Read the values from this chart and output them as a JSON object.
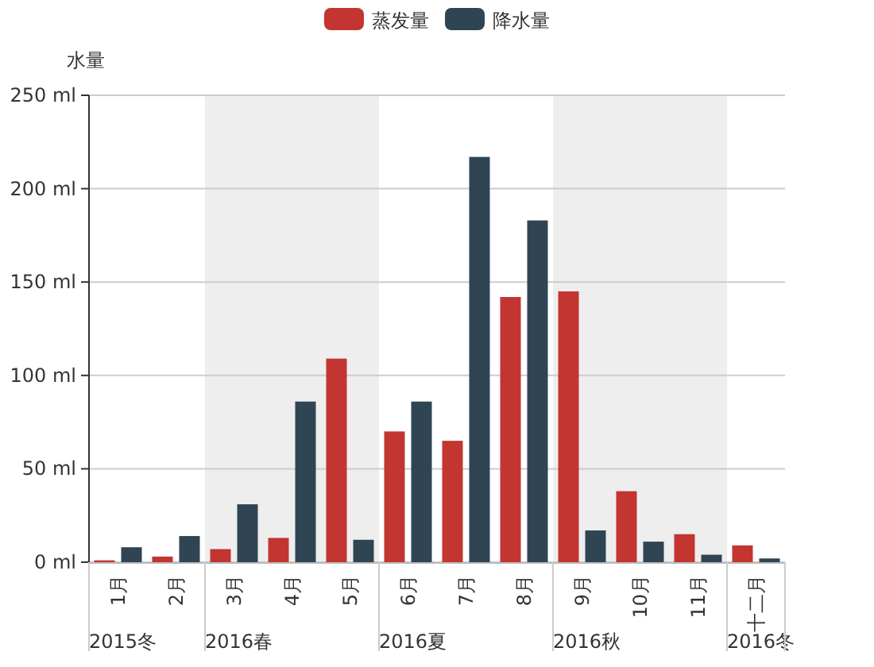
{
  "chart_data": {
    "type": "bar",
    "ylabel": "水量",
    "categories": [
      "1月",
      "2月",
      "3月",
      "4月",
      "5月",
      "6月",
      "7月",
      "8月",
      "9月",
      "10月",
      "11月",
      "十二月"
    ],
    "series": [
      {
        "name": "蒸发量",
        "color": "#c23531",
        "values": [
          1,
          3,
          7,
          13,
          109,
          70,
          65,
          142,
          145,
          38,
          15,
          9
        ]
      },
      {
        "name": "降水量",
        "color": "#2f4554",
        "values": [
          8,
          14,
          31,
          86,
          12,
          86,
          217,
          183,
          17,
          11,
          4,
          2
        ]
      }
    ],
    "ylim": [
      0,
      250
    ],
    "yticks": [
      {
        "value": 0,
        "label": "0 ml"
      },
      {
        "value": 50,
        "label": "50 ml"
      },
      {
        "value": 100,
        "label": "100 ml"
      },
      {
        "value": 150,
        "label": "150 ml"
      },
      {
        "value": 200,
        "label": "200 ml"
      },
      {
        "value": 250,
        "label": "250 ml"
      }
    ],
    "bands": [
      {
        "axis": "x",
        "from": "3月",
        "to": "5月",
        "label": "2016春",
        "color": "#eeeeee"
      },
      {
        "axis": "x",
        "from": "9月",
        "to": "11月",
        "label": "2016秋",
        "color": "#eeeeee"
      }
    ],
    "annotations": [
      "2015冬",
      "2016夏",
      "2016冬"
    ],
    "grid": "y",
    "legend": "top"
  }
}
